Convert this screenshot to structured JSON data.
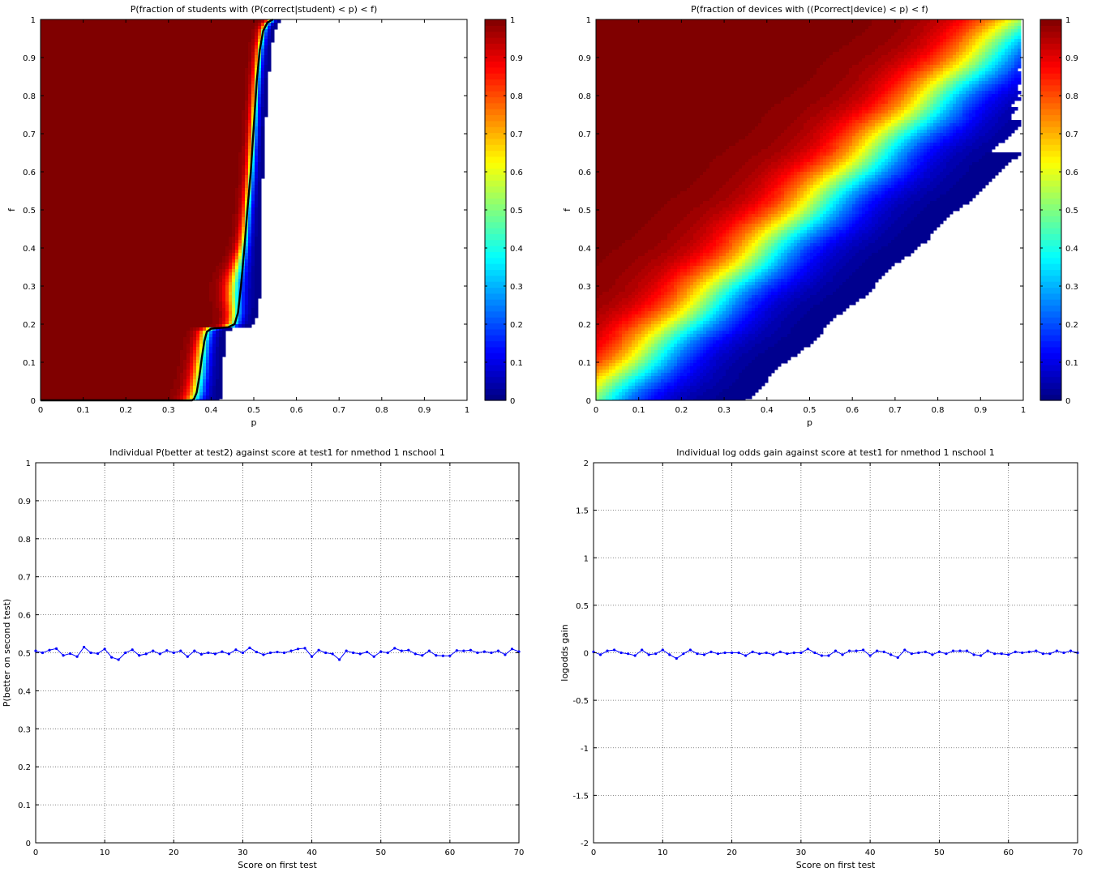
{
  "figure_title": "",
  "chart_data": [
    {
      "id": "p1",
      "type": "heatmap",
      "title": "P(fraction of students with (P(correct|student) < p) < f)",
      "xlabel": "p",
      "ylabel": "f",
      "xlim": [
        0,
        1
      ],
      "ylim": [
        0,
        1
      ],
      "xticks": [
        "0",
        "0.1",
        "0.2",
        "0.3",
        "0.4",
        "0.5",
        "0.6",
        "0.7",
        "0.8",
        "0.9",
        "1"
      ],
      "yticks": [
        "0",
        "0.1",
        "0.2",
        "0.3",
        "0.4",
        "0.5",
        "0.6",
        "0.7",
        "0.8",
        "0.9",
        "1"
      ],
      "colorbar": {
        "range": [
          0,
          1
        ],
        "ticks": [
          "0",
          "0.1",
          "0.2",
          "0.3",
          "0.4",
          "0.5",
          "0.6",
          "0.7",
          "0.8",
          "0.9",
          "1"
        ],
        "colormap": "jet"
      },
      "contour_line": {
        "color": "#000000",
        "points": [
          [
            0,
            0
          ],
          [
            0.3,
            0
          ],
          [
            0.355,
            0
          ],
          [
            0.36,
            0.004
          ],
          [
            0.366,
            0.02
          ],
          [
            0.372,
            0.06
          ],
          [
            0.378,
            0.11
          ],
          [
            0.384,
            0.155
          ],
          [
            0.39,
            0.18
          ],
          [
            0.4,
            0.188
          ],
          [
            0.42,
            0.19
          ],
          [
            0.44,
            0.192
          ],
          [
            0.455,
            0.2
          ],
          [
            0.463,
            0.23
          ],
          [
            0.47,
            0.3
          ],
          [
            0.478,
            0.4
          ],
          [
            0.485,
            0.5
          ],
          [
            0.493,
            0.6
          ],
          [
            0.5,
            0.72
          ],
          [
            0.507,
            0.84
          ],
          [
            0.514,
            0.92
          ],
          [
            0.522,
            0.97
          ],
          [
            0.532,
            0.992
          ],
          [
            0.545,
            1
          ]
        ]
      },
      "shading": {
        "transition_width_top": 0.022,
        "transition_width_bottom": 0.07,
        "warm_bump": {
          "p": 0.45,
          "f": 0.3,
          "extra_width": 0.035
        }
      }
    },
    {
      "id": "p2",
      "type": "heatmap",
      "title": "P(fraction of devices with ((Pcorrect|device) < p) < f)",
      "xlabel": "p",
      "ylabel": "f",
      "xlim": [
        0,
        1
      ],
      "ylim": [
        0,
        1
      ],
      "xticks": [
        "0",
        "0.1",
        "0.2",
        "0.3",
        "0.4",
        "0.5",
        "0.6",
        "0.7",
        "0.8",
        "0.9",
        "1"
      ],
      "yticks": [
        "0",
        "0.1",
        "0.2",
        "0.3",
        "0.4",
        "0.5",
        "0.6",
        "0.7",
        "0.8",
        "0.9",
        "1"
      ],
      "colorbar": {
        "range": [
          0,
          1
        ],
        "ticks": [
          "0",
          "0.1",
          "0.2",
          "0.3",
          "0.4",
          "0.5",
          "0.6",
          "0.7",
          "0.8",
          "0.9",
          "1"
        ],
        "colormap": "jet"
      },
      "shading": {
        "center_line": [
          [
            0,
            0.39
          ],
          [
            1,
            0.53
          ]
        ],
        "spread": 0.115
      }
    },
    {
      "id": "p3",
      "type": "line",
      "title": "Individual P(better at test2) against score at test1 for nmethod 1 nschool 1",
      "xlabel": "Score on first test",
      "ylabel": "P(better on second test)",
      "xlim": [
        0,
        70
      ],
      "ylim": [
        0,
        1
      ],
      "grid": true,
      "xticks": [
        "0",
        "10",
        "20",
        "30",
        "40",
        "50",
        "60",
        "70"
      ],
      "yticks": [
        "0",
        "0.1",
        "0.2",
        "0.3",
        "0.4",
        "0.5",
        "0.6",
        "0.7",
        "0.8",
        "0.9",
        "1"
      ],
      "series": [
        {
          "color": "#0000ff",
          "marker": "dot",
          "x": [
            0,
            1,
            2,
            3,
            4,
            5,
            6,
            7,
            8,
            9,
            10,
            11,
            12,
            13,
            14,
            15,
            16,
            17,
            18,
            19,
            20,
            21,
            22,
            23,
            24,
            25,
            26,
            27,
            28,
            29,
            30,
            31,
            32,
            33,
            34,
            35,
            36,
            37,
            38,
            39,
            40,
            41,
            42,
            43,
            44,
            45,
            46,
            47,
            48,
            49,
            50,
            51,
            52,
            53,
            54,
            55,
            56,
            57,
            58,
            59,
            60,
            61,
            62,
            63,
            64,
            65,
            66,
            67,
            68,
            69,
            70
          ],
          "values": [
            0.505,
            0.5,
            0.507,
            0.511,
            0.493,
            0.498,
            0.49,
            0.515,
            0.5,
            0.498,
            0.51,
            0.488,
            0.482,
            0.5,
            0.508,
            0.493,
            0.497,
            0.505,
            0.497,
            0.506,
            0.5,
            0.505,
            0.49,
            0.505,
            0.496,
            0.5,
            0.497,
            0.503,
            0.497,
            0.508,
            0.5,
            0.513,
            0.502,
            0.495,
            0.5,
            0.502,
            0.5,
            0.505,
            0.51,
            0.512,
            0.49,
            0.507,
            0.5,
            0.497,
            0.482,
            0.505,
            0.5,
            0.497,
            0.502,
            0.49,
            0.503,
            0.5,
            0.512,
            0.505,
            0.507,
            0.497,
            0.493,
            0.505,
            0.493,
            0.492,
            0.492,
            0.506,
            0.505,
            0.507,
            0.5,
            0.503,
            0.5,
            0.505,
            0.495,
            0.51,
            0.503
          ]
        }
      ]
    },
    {
      "id": "p4",
      "type": "line",
      "title": "Individual log odds gain against score at test1 for nmethod 1 nschool 1",
      "xlabel": "Score on first test",
      "ylabel": "logodds gain",
      "xlim": [
        0,
        70
      ],
      "ylim": [
        -2,
        2
      ],
      "grid": true,
      "xticks": [
        "0",
        "10",
        "20",
        "30",
        "40",
        "50",
        "60",
        "70"
      ],
      "yticks": [
        "-2",
        "-1.5",
        "-1",
        "-0.5",
        "0",
        "0.5",
        "1",
        "1.5",
        "2"
      ],
      "series": [
        {
          "color": "#0000ff",
          "marker": "dot",
          "x": [
            0,
            1,
            2,
            3,
            4,
            5,
            6,
            7,
            8,
            9,
            10,
            11,
            12,
            13,
            14,
            15,
            16,
            17,
            18,
            19,
            20,
            21,
            22,
            23,
            24,
            25,
            26,
            27,
            28,
            29,
            30,
            31,
            32,
            33,
            34,
            35,
            36,
            37,
            38,
            39,
            40,
            41,
            42,
            43,
            44,
            45,
            46,
            47,
            48,
            49,
            50,
            51,
            52,
            53,
            54,
            55,
            56,
            57,
            58,
            59,
            60,
            61,
            62,
            63,
            64,
            65,
            66,
            67,
            68,
            69,
            70
          ],
          "values": [
            0.01,
            -0.02,
            0.02,
            0.03,
            0.0,
            -0.01,
            -0.03,
            0.03,
            -0.02,
            -0.01,
            0.03,
            -0.02,
            -0.06,
            -0.01,
            0.03,
            -0.01,
            -0.02,
            0.01,
            -0.01,
            0.0,
            0.0,
            0.0,
            -0.03,
            0.01,
            -0.01,
            0.0,
            -0.02,
            0.01,
            -0.01,
            0.0,
            0.0,
            0.04,
            0.0,
            -0.03,
            -0.03,
            0.02,
            -0.02,
            0.02,
            0.02,
            0.03,
            -0.03,
            0.02,
            0.01,
            -0.02,
            -0.05,
            0.03,
            -0.01,
            0.0,
            0.01,
            -0.02,
            0.01,
            -0.01,
            0.02,
            0.02,
            0.02,
            -0.02,
            -0.03,
            0.02,
            -0.01,
            -0.01,
            -0.02,
            0.01,
            0.0,
            0.01,
            0.02,
            -0.01,
            -0.01,
            0.02,
            0.0,
            0.02,
            0.0
          ]
        }
      ]
    }
  ]
}
